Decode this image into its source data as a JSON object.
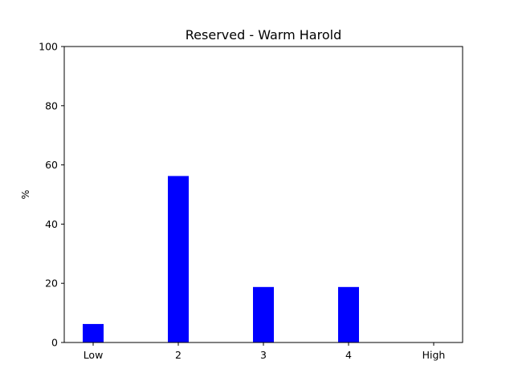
{
  "chart_data": {
    "type": "bar",
    "title": "Reserved - Warm Harold",
    "xlabel": "",
    "ylabel": "%",
    "categories": [
      "Low",
      "2",
      "3",
      "4",
      "High"
    ],
    "values": [
      6.25,
      56.25,
      18.75,
      18.75,
      0
    ],
    "ylim": [
      0,
      100
    ],
    "yticks": [
      0,
      20,
      40,
      60,
      80,
      100
    ],
    "bar_color": "#0000ff",
    "grid": false,
    "legend": "none"
  }
}
